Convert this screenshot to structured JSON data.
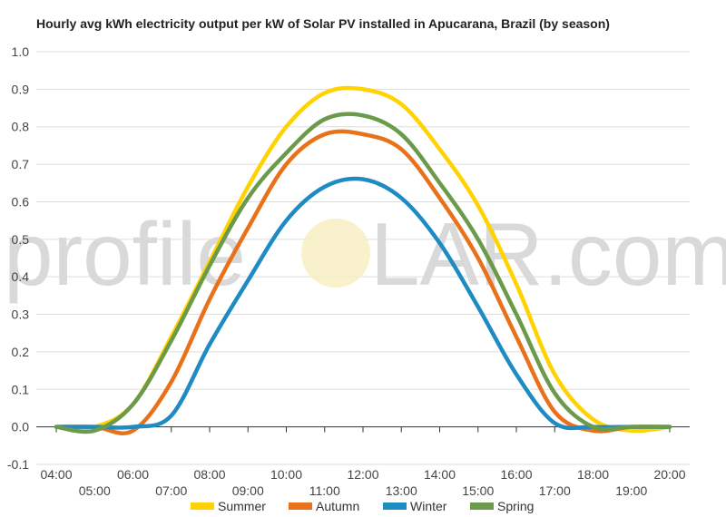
{
  "chart_data": {
    "type": "line",
    "title": "Hourly avg kWh electricity output per kW of Solar PV installed in Apucarana, Brazil (by season)",
    "xlabel": "",
    "ylabel": "",
    "ylim": [
      -0.1,
      1.0
    ],
    "yticks": [
      "1.0",
      "0.9",
      "0.8",
      "0.7",
      "0.6",
      "0.5",
      "0.4",
      "0.3",
      "0.2",
      "0.1",
      "0.0",
      "-0.1"
    ],
    "x": [
      "04:00",
      "05:00",
      "06:00",
      "07:00",
      "08:00",
      "09:00",
      "10:00",
      "11:00",
      "12:00",
      "13:00",
      "14:00",
      "15:00",
      "16:00",
      "17:00",
      "18:00",
      "19:00",
      "20:00"
    ],
    "series": [
      {
        "name": "Summer",
        "color": "#ffd200",
        "values": [
          0.0,
          0.0,
          0.06,
          0.24,
          0.44,
          0.64,
          0.8,
          0.89,
          0.9,
          0.86,
          0.74,
          0.59,
          0.38,
          0.14,
          0.02,
          -0.01,
          0.0
        ]
      },
      {
        "name": "Autumn",
        "color": "#e8711a",
        "values": [
          0.0,
          0.0,
          -0.01,
          0.12,
          0.34,
          0.53,
          0.7,
          0.78,
          0.78,
          0.74,
          0.61,
          0.45,
          0.24,
          0.04,
          -0.01,
          0.0,
          0.0
        ]
      },
      {
        "name": "Winter",
        "color": "#1e8bc3",
        "values": [
          0.0,
          0.0,
          0.0,
          0.03,
          0.22,
          0.39,
          0.55,
          0.64,
          0.66,
          0.61,
          0.49,
          0.32,
          0.14,
          0.01,
          0.0,
          0.0,
          0.0
        ]
      },
      {
        "name": "Spring",
        "color": "#6a9a4a",
        "values": [
          0.0,
          -0.01,
          0.06,
          0.23,
          0.43,
          0.61,
          0.73,
          0.82,
          0.83,
          0.78,
          0.65,
          0.5,
          0.3,
          0.09,
          0.0,
          0.0,
          0.0
        ]
      }
    ],
    "grid": true,
    "legend_position": "bottom"
  },
  "watermark": {
    "left": "profile",
    "sun": "O",
    "right": "LAR.com"
  }
}
